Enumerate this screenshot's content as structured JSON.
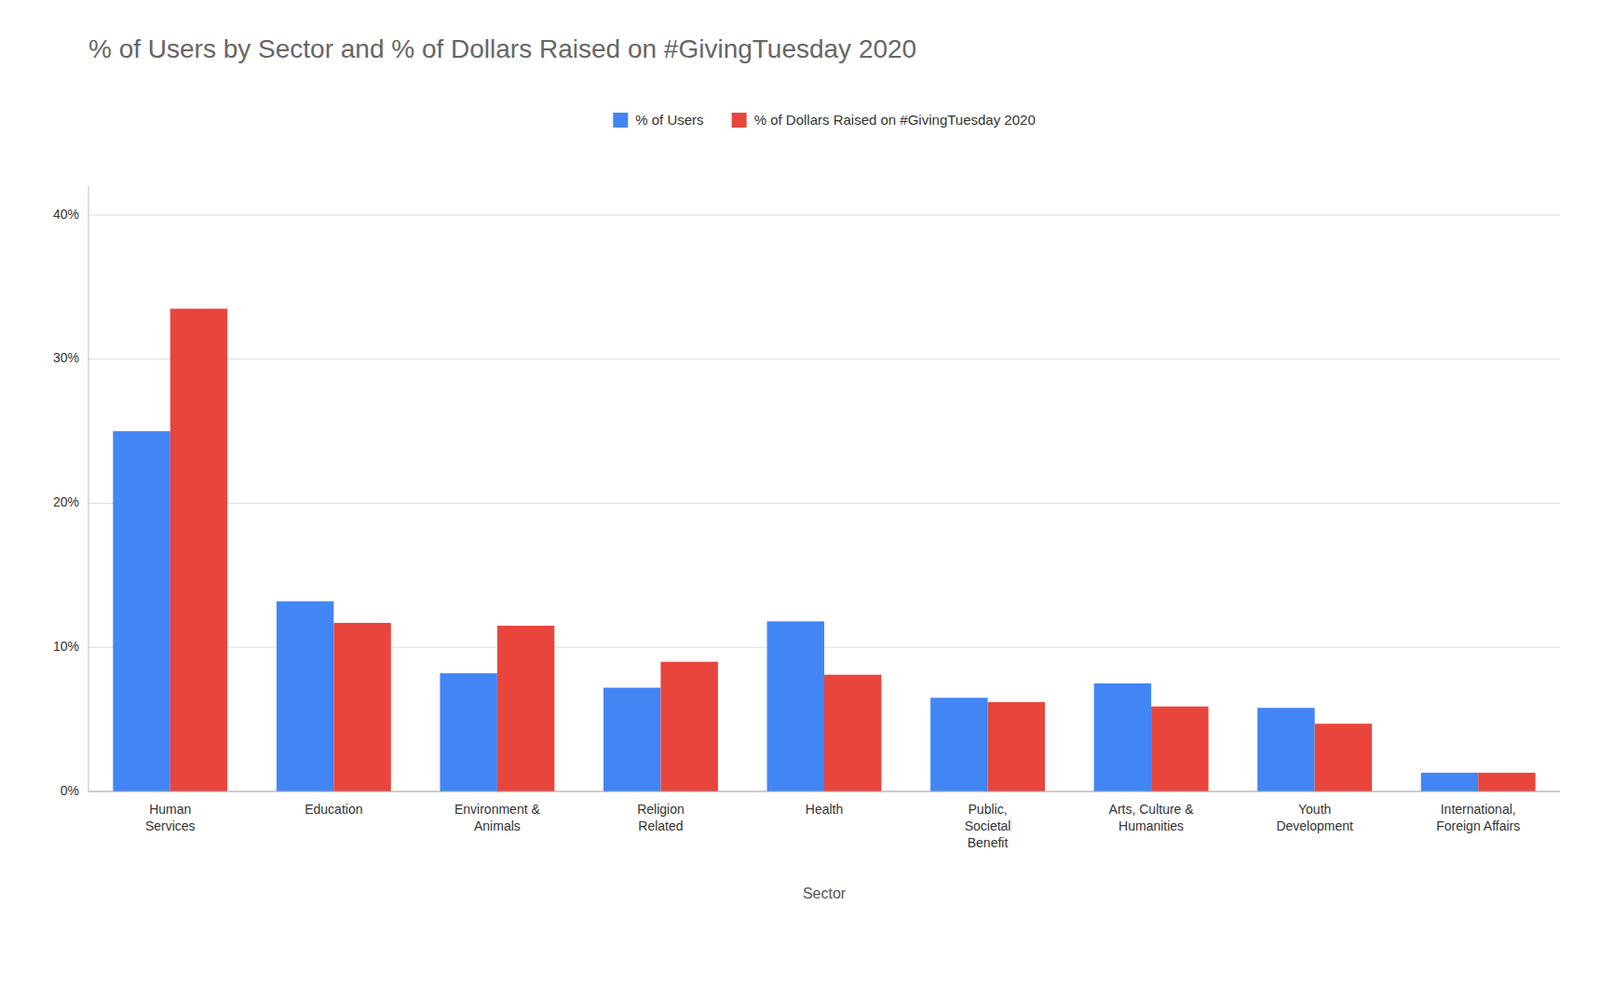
{
  "chart_data": {
    "type": "bar",
    "title": "% of Users by Sector and % of Dollars Raised on #GivingTuesday 2020",
    "xlabel": "Sector",
    "categories": [
      "Human\nServices",
      "Education",
      "Environment &\nAnimals",
      "Religion\nRelated",
      "Health",
      "Public,\nSocietal\nBenefit",
      "Arts, Culture &\nHumanities",
      "Youth\nDevelopment",
      "International,\nForeign Affairs"
    ],
    "series": [
      {
        "name": "% of Users",
        "color": "#4285F4",
        "values": [
          25.0,
          13.2,
          8.2,
          7.2,
          11.8,
          6.5,
          7.5,
          5.8,
          1.3
        ]
      },
      {
        "name": "% of Dollars Raised on #GivingTuesday 2020",
        "color": "#E8453C",
        "values": [
          33.5,
          11.7,
          11.5,
          9.0,
          8.1,
          6.2,
          5.9,
          4.7,
          1.3
        ]
      }
    ],
    "ylim": [
      0,
      42
    ],
    "yticks": [
      {
        "value": 0,
        "label": "0%"
      },
      {
        "value": 10,
        "label": "10%"
      },
      {
        "value": 20,
        "label": "20%"
      },
      {
        "value": 30,
        "label": "30%"
      },
      {
        "value": 40,
        "label": "40%"
      }
    ],
    "grid": true,
    "legend": "top"
  }
}
